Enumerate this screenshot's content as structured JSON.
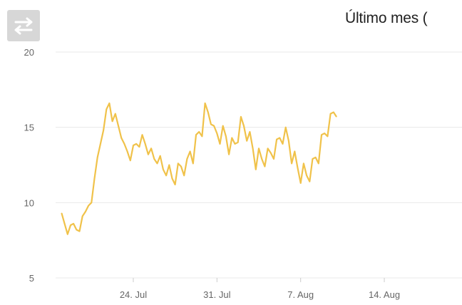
{
  "toolbar": {
    "toggle_icon": "swap-arrows-icon"
  },
  "colors": {
    "line": "#f0c24a",
    "grid": "#e9e9e9",
    "axis_text": "#666666",
    "button": "#d7d7d7"
  },
  "chart_data": {
    "type": "line",
    "title": "Último mes (",
    "xlabel": "",
    "ylabel": "",
    "ylim": [
      5,
      20
    ],
    "yticks": [
      5,
      10,
      15,
      20
    ],
    "xticks": [
      {
        "label": "24. Jul",
        "date": "2021-07-24"
      },
      {
        "label": "31. Jul",
        "date": "2021-07-31"
      },
      {
        "label": "7. Aug",
        "date": "2021-08-07"
      },
      {
        "label": "14. Aug",
        "date": "2021-08-14"
      }
    ],
    "grid": true,
    "series": [
      {
        "points": [
          [
            "2021-07-18 00:00",
            9.3
          ],
          [
            "2021-07-18 06:00",
            8.6
          ],
          [
            "2021-07-18 12:00",
            7.9
          ],
          [
            "2021-07-18 18:00",
            8.5
          ],
          [
            "2021-07-19 00:00",
            8.6
          ],
          [
            "2021-07-19 06:00",
            8.2
          ],
          [
            "2021-07-19 12:00",
            8.1
          ],
          [
            "2021-07-19 18:00",
            9.1
          ],
          [
            "2021-07-20 00:00",
            9.4
          ],
          [
            "2021-07-20 06:00",
            9.8
          ],
          [
            "2021-07-20 12:00",
            10.0
          ],
          [
            "2021-07-20 18:00",
            11.6
          ],
          [
            "2021-07-21 00:00",
            13.0
          ],
          [
            "2021-07-21 06:00",
            13.9
          ],
          [
            "2021-07-21 12:00",
            14.8
          ],
          [
            "2021-07-21 18:00",
            16.2
          ],
          [
            "2021-07-22 00:00",
            16.6
          ],
          [
            "2021-07-22 06:00",
            15.4
          ],
          [
            "2021-07-22 12:00",
            15.9
          ],
          [
            "2021-07-22 18:00",
            15.1
          ],
          [
            "2021-07-23 00:00",
            14.3
          ],
          [
            "2021-07-23 06:00",
            13.9
          ],
          [
            "2021-07-23 12:00",
            13.4
          ],
          [
            "2021-07-23 18:00",
            12.8
          ],
          [
            "2021-07-24 00:00",
            13.8
          ],
          [
            "2021-07-24 06:00",
            13.9
          ],
          [
            "2021-07-24 12:00",
            13.7
          ],
          [
            "2021-07-24 18:00",
            14.5
          ],
          [
            "2021-07-25 00:00",
            13.9
          ],
          [
            "2021-07-25 06:00",
            13.2
          ],
          [
            "2021-07-25 12:00",
            13.6
          ],
          [
            "2021-07-25 18:00",
            12.9
          ],
          [
            "2021-07-26 00:00",
            12.6
          ],
          [
            "2021-07-26 06:00",
            13.1
          ],
          [
            "2021-07-26 12:00",
            12.2
          ],
          [
            "2021-07-26 18:00",
            11.8
          ],
          [
            "2021-07-27 00:00",
            12.5
          ],
          [
            "2021-07-27 06:00",
            11.6
          ],
          [
            "2021-07-27 12:00",
            11.2
          ],
          [
            "2021-07-27 18:00",
            12.6
          ],
          [
            "2021-07-28 00:00",
            12.4
          ],
          [
            "2021-07-28 06:00",
            11.8
          ],
          [
            "2021-07-28 12:00",
            12.9
          ],
          [
            "2021-07-28 18:00",
            13.4
          ],
          [
            "2021-07-29 00:00",
            12.6
          ],
          [
            "2021-07-29 06:00",
            14.5
          ],
          [
            "2021-07-29 12:00",
            14.7
          ],
          [
            "2021-07-29 18:00",
            14.4
          ],
          [
            "2021-07-30 00:00",
            16.6
          ],
          [
            "2021-07-30 06:00",
            16.0
          ],
          [
            "2021-07-30 12:00",
            15.2
          ],
          [
            "2021-07-30 18:00",
            15.1
          ],
          [
            "2021-07-31 00:00",
            14.6
          ],
          [
            "2021-07-31 06:00",
            13.9
          ],
          [
            "2021-07-31 12:00",
            15.1
          ],
          [
            "2021-07-31 18:00",
            14.4
          ],
          [
            "2021-08-01 00:00",
            13.2
          ],
          [
            "2021-08-01 06:00",
            14.3
          ],
          [
            "2021-08-01 12:00",
            13.9
          ],
          [
            "2021-08-01 18:00",
            14.0
          ],
          [
            "2021-08-02 00:00",
            15.7
          ],
          [
            "2021-08-02 06:00",
            15.1
          ],
          [
            "2021-08-02 12:00",
            14.1
          ],
          [
            "2021-08-02 18:00",
            14.7
          ],
          [
            "2021-08-03 00:00",
            13.6
          ],
          [
            "2021-08-03 06:00",
            12.2
          ],
          [
            "2021-08-03 12:00",
            13.6
          ],
          [
            "2021-08-03 18:00",
            12.9
          ],
          [
            "2021-08-04 00:00",
            12.4
          ],
          [
            "2021-08-04 06:00",
            13.6
          ],
          [
            "2021-08-04 12:00",
            13.3
          ],
          [
            "2021-08-04 18:00",
            12.9
          ],
          [
            "2021-08-05 00:00",
            14.2
          ],
          [
            "2021-08-05 06:00",
            14.3
          ],
          [
            "2021-08-05 12:00",
            13.9
          ],
          [
            "2021-08-05 18:00",
            15.0
          ],
          [
            "2021-08-06 00:00",
            14.1
          ],
          [
            "2021-08-06 06:00",
            12.6
          ],
          [
            "2021-08-06 12:00",
            13.4
          ],
          [
            "2021-08-06 18:00",
            12.3
          ],
          [
            "2021-08-07 00:00",
            11.3
          ],
          [
            "2021-08-07 06:00",
            12.6
          ],
          [
            "2021-08-07 12:00",
            11.8
          ],
          [
            "2021-08-07 18:00",
            11.4
          ],
          [
            "2021-08-08 00:00",
            12.9
          ],
          [
            "2021-08-08 06:00",
            13.0
          ],
          [
            "2021-08-08 12:00",
            12.6
          ],
          [
            "2021-08-08 18:00",
            14.5
          ],
          [
            "2021-08-09 00:00",
            14.6
          ],
          [
            "2021-08-09 06:00",
            14.4
          ],
          [
            "2021-08-09 12:00",
            15.9
          ],
          [
            "2021-08-09 18:00",
            16.0
          ],
          [
            "2021-08-10 00:00",
            15.7
          ]
        ]
      }
    ]
  }
}
